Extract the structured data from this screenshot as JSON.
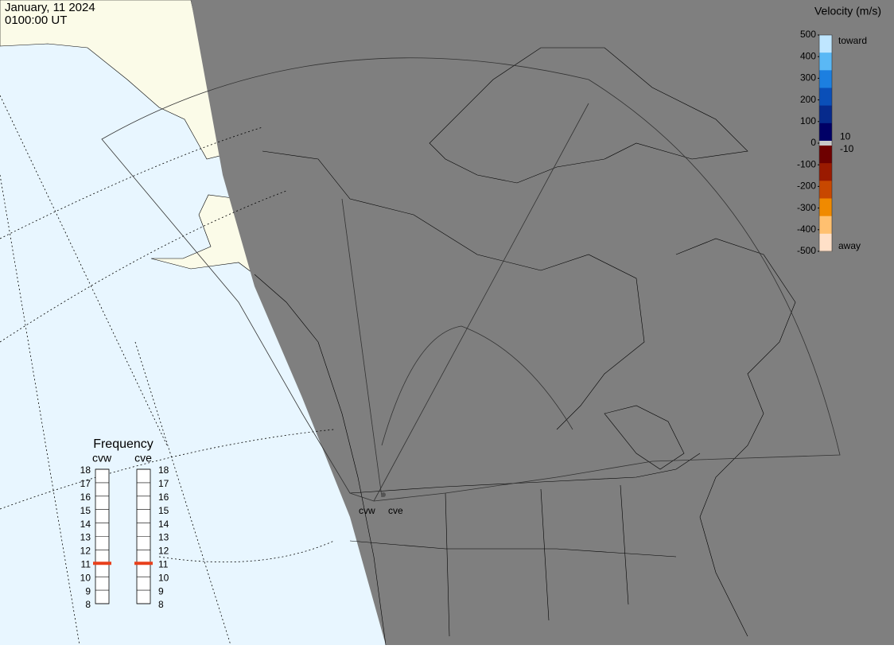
{
  "header": {
    "date": "January, 11 2024",
    "time": "0100:00 UT"
  },
  "chart_data": {
    "type": "colorbar",
    "title": "Velocity (m/s)",
    "ylim": [
      -500,
      500
    ],
    "yticks": [
      500,
      400,
      300,
      200,
      100,
      0,
      -100,
      -200,
      -300,
      -400,
      -500
    ],
    "threshold_ticks": [
      10,
      -10
    ],
    "end_labels": [
      "toward",
      "away"
    ],
    "toward_colors": [
      "#bfe6ff",
      "#5ab8f5",
      "#1c7fe0",
      "#0a4fb8",
      "#062a8c",
      "#000066"
    ],
    "away_colors": [
      "#6e0000",
      "#9a1a00",
      "#c84800",
      "#f08a00",
      "#ffc070",
      "#ffe0c8"
    ],
    "zero_color": "#c8c8c8"
  },
  "frequency": {
    "type": "frequency",
    "title": "Frequency",
    "ylim": [
      8,
      18
    ],
    "yticks": [
      8,
      9,
      10,
      11,
      12,
      13,
      14,
      15,
      16,
      17,
      18
    ],
    "color": "#e8401c",
    "radars": [
      {
        "name": "cvw",
        "value": 11
      },
      {
        "name": "cve",
        "value": 11
      }
    ]
  },
  "map": {
    "radar_labels": [
      "cvw",
      "cve"
    ]
  }
}
